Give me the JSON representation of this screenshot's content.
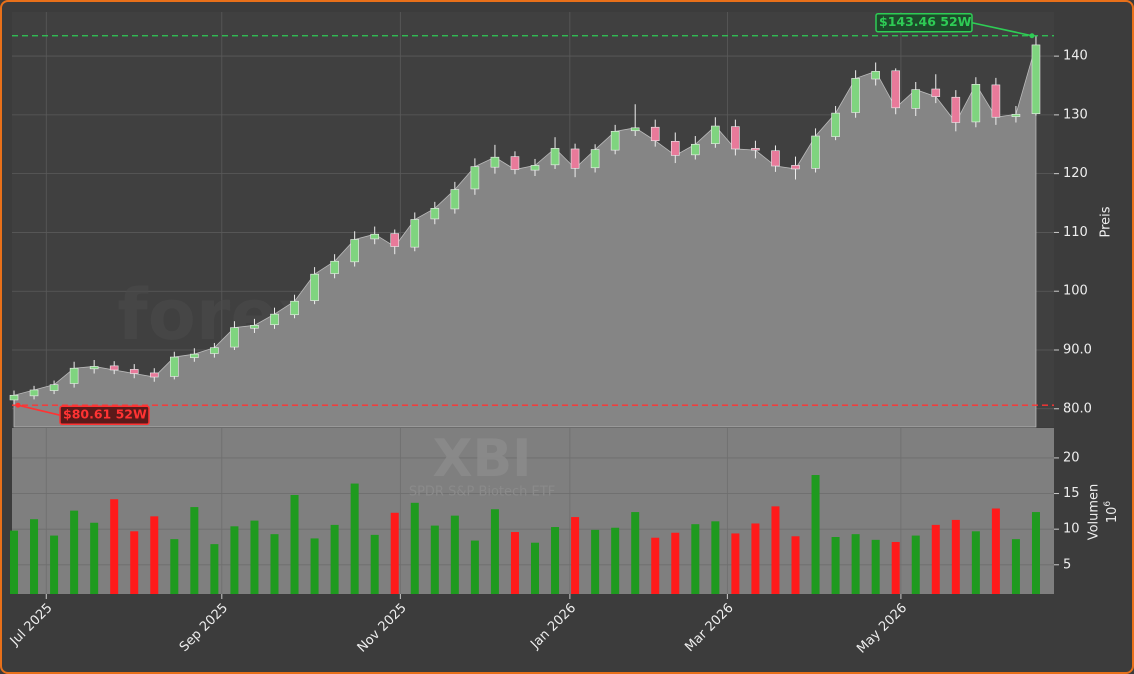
{
  "chart_data": {
    "type": "candlestick",
    "watermark": "forexsignale.trade",
    "symbol": "XBI",
    "symbol_subtitle": "SPDR S&P Biotech ETF",
    "ylabel": "Preis",
    "y2label": "Volumen",
    "y2_multiplier": "10",
    "y2_multiplier_exponent": "6",
    "xlim": [
      -0.1,
      51.9
    ],
    "xticks": [
      {
        "value": 1.61,
        "label": "Jul 2025"
      },
      {
        "value": 10.37,
        "label": "Sep 2025"
      },
      {
        "value": 19.28,
        "label": "Nov 2025"
      },
      {
        "value": 27.74,
        "label": "Jan 2026"
      },
      {
        "value": 35.6,
        "label": "Mar 2026"
      },
      {
        "value": 44.26,
        "label": "May 2026"
      }
    ],
    "ylim": [
      76.9,
      147.5
    ],
    "yticks": [
      {
        "value": 80,
        "label": "80.0"
      },
      {
        "value": 90,
        "label": "90.0"
      },
      100,
      110,
      120,
      130,
      140
    ],
    "y2lim": [
      0.9,
      24.2
    ],
    "y2ticks": [
      5,
      10,
      15,
      20
    ],
    "grid": true,
    "up_color": "#1f9a1f",
    "down_color": "#ff1a1a",
    "area_color": "#858585",
    "open": [
      81.5,
      82.2,
      83.1,
      84.3,
      86.8,
      87.3,
      86.7,
      86.1,
      85.5,
      88.7,
      89.4,
      90.5,
      93.7,
      94.3,
      96.0,
      98.4,
      103.0,
      105.0,
      108.9,
      109.8,
      107.5,
      112.3,
      114.0,
      117.4,
      121.1,
      122.9,
      120.6,
      121.5,
      124.2,
      121.0,
      124.0,
      127.3,
      127.9,
      125.5,
      123.2,
      125.1,
      128.0,
      124.3,
      123.9,
      121.4,
      120.9,
      126.3,
      130.4,
      136.1,
      137.5,
      131.1,
      134.4,
      133.0,
      128.8,
      135.1,
      129.7,
      130.2
    ],
    "high": [
      83.1,
      83.9,
      84.8,
      88.0,
      88.3,
      88.1,
      87.6,
      86.9,
      89.7,
      90.3,
      91.2,
      94.9,
      95.3,
      97.2,
      99.4,
      104.1,
      106.3,
      110.2,
      111.0,
      110.5,
      113.4,
      115.2,
      118.6,
      122.6,
      124.9,
      123.8,
      122.5,
      126.2,
      125.1,
      125.0,
      128.3,
      131.8,
      129.2,
      127.0,
      126.4,
      129.6,
      129.2,
      125.6,
      124.8,
      122.9,
      127.7,
      131.5,
      137.6,
      138.9,
      137.9,
      135.6,
      136.9,
      134.2,
      136.4,
      136.3,
      131.5,
      143.46
    ],
    "low": [
      80.61,
      81.6,
      82.5,
      83.6,
      86.0,
      85.9,
      85.2,
      84.6,
      85.0,
      88.0,
      88.7,
      90.0,
      92.9,
      93.6,
      95.4,
      97.8,
      102.2,
      104.2,
      108.0,
      106.3,
      106.8,
      111.4,
      113.2,
      116.4,
      120.0,
      119.9,
      119.6,
      120.8,
      119.4,
      120.2,
      123.3,
      126.4,
      124.6,
      121.8,
      122.4,
      124.4,
      123.1,
      122.6,
      120.3,
      119.0,
      120.2,
      125.7,
      129.5,
      135.0,
      130.1,
      129.8,
      132.0,
      127.2,
      127.9,
      128.3,
      128.7,
      129.9
    ],
    "close": [
      82.3,
      83.2,
      84.1,
      86.9,
      87.2,
      86.6,
      86.0,
      85.4,
      88.8,
      89.3,
      90.4,
      93.8,
      94.2,
      96.1,
      98.3,
      102.9,
      105.1,
      108.8,
      109.7,
      107.6,
      112.2,
      114.1,
      117.3,
      121.2,
      122.8,
      120.7,
      121.4,
      124.3,
      120.9,
      124.1,
      127.2,
      127.8,
      125.6,
      123.1,
      125.0,
      128.1,
      124.2,
      124.0,
      121.3,
      120.8,
      126.4,
      130.3,
      136.2,
      137.4,
      131.2,
      134.3,
      133.1,
      128.7,
      135.2,
      129.6,
      130.1,
      141.9
    ],
    "volume": [
      9.8,
      11.4,
      9.1,
      12.6,
      10.9,
      14.2,
      9.7,
      11.8,
      8.6,
      13.1,
      7.9,
      10.4,
      11.2,
      9.3,
      14.8,
      8.7,
      10.6,
      16.4,
      9.2,
      12.3,
      13.7,
      10.5,
      11.9,
      8.4,
      12.8,
      9.6,
      8.1,
      10.3,
      11.7,
      9.9,
      10.2,
      12.4,
      8.8,
      9.5,
      10.7,
      11.1,
      9.4,
      10.8,
      13.2,
      9.0,
      17.6,
      8.9,
      9.3,
      8.5,
      8.2,
      9.1,
      10.6,
      11.3,
      9.7,
      12.9,
      8.6,
      12.4
    ],
    "annotations": [
      {
        "value": 143.46,
        "label": "$143.46 52W",
        "color": "#2ecc55",
        "index": 51
      },
      {
        "value": 80.61,
        "label": "$80.61 52W",
        "color": "#ff3333",
        "index": 0
      }
    ]
  }
}
